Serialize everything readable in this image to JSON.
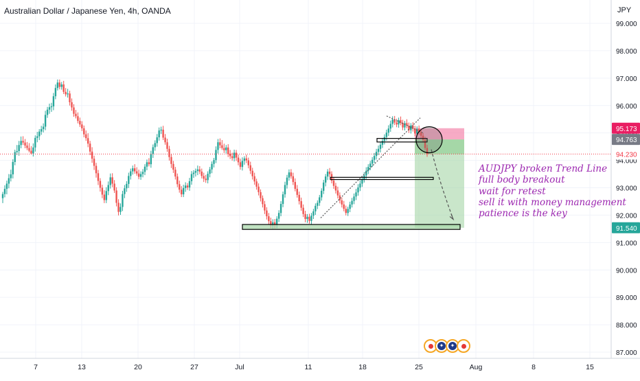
{
  "header": {
    "title": "Australian Dollar / Japanese Yen, 4h, OANDA",
    "currency": "JPY"
  },
  "annotation": {
    "lines": [
      "AUDJPY broken Trend Line",
      "full body breakout",
      "wait for retest",
      "sell it with money management",
      "patience is the key"
    ],
    "color": "#9c27b0"
  },
  "chart_data": {
    "type": "candlestick",
    "symbol": "AUDJPY",
    "timeframe": "4h",
    "y_axis": {
      "ticks": [
        "99.000",
        "98.000",
        "97.000",
        "96.000",
        "95.000",
        "94.000",
        "93.000",
        "92.000",
        "91.000",
        "90.000",
        "89.000",
        "88.000",
        "87.000"
      ],
      "tick_values": [
        99,
        98,
        97,
        96,
        95,
        94,
        93,
        92,
        91,
        90,
        89,
        88,
        87
      ],
      "range": [
        86.95,
        99.3
      ]
    },
    "x_axis": {
      "labels": [
        "7",
        "13",
        "20",
        "27",
        "Jul",
        "11",
        "18",
        "25",
        "Aug",
        "8",
        "15"
      ]
    },
    "price_labels": [
      {
        "text": "95.173",
        "value": 95.173,
        "bg": "#e91e63",
        "fg": "#ffffff"
      },
      {
        "text": "94.763",
        "value": 94.763,
        "bg": "#787b86",
        "fg": "#ffffff"
      },
      {
        "text": "94.230",
        "value": 94.23,
        "bg": "#ffffff",
        "fg": "#f23645"
      },
      {
        "text": "91.540",
        "value": 91.54,
        "bg": "#26a69a",
        "fg": "#ffffff"
      }
    ],
    "current_price": 94.23,
    "position": {
      "side": "short",
      "entry": 94.763,
      "stop": 95.173,
      "target": 91.54
    },
    "zones": [
      {
        "name": "support-box",
        "low": 91.48,
        "high": 91.66
      },
      {
        "name": "mid-level-box",
        "low": 93.3,
        "high": 93.38
      },
      {
        "name": "retest-box",
        "low": 94.67,
        "high": 94.8
      }
    ],
    "up_color": "#26a69a",
    "down_color": "#ef5350",
    "candles": [
      [
        92.62,
        92.85,
        92.44,
        92.77
      ],
      [
        92.77,
        93.09,
        92.65,
        92.96
      ],
      [
        92.96,
        93.26,
        92.76,
        93.15
      ],
      [
        93.15,
        93.5,
        92.98,
        93.35
      ],
      [
        93.35,
        93.66,
        93.23,
        93.49
      ],
      [
        93.49,
        94.04,
        93.34,
        93.94
      ],
      [
        93.94,
        94.39,
        93.82,
        94.3
      ],
      [
        94.3,
        94.56,
        94.19,
        94.34
      ],
      [
        94.34,
        94.71,
        94.17,
        94.56
      ],
      [
        94.56,
        94.87,
        94.44,
        94.71
      ],
      [
        94.71,
        94.88,
        94.56,
        94.65
      ],
      [
        94.65,
        94.78,
        94.44,
        94.54
      ],
      [
        94.54,
        94.67,
        94.37,
        94.45
      ],
      [
        94.45,
        94.63,
        94.29,
        94.35
      ],
      [
        94.35,
        94.52,
        94.21,
        94.25
      ],
      [
        94.25,
        94.62,
        94.14,
        94.47
      ],
      [
        94.47,
        94.91,
        94.32,
        94.82
      ],
      [
        94.82,
        95.04,
        94.66,
        94.88
      ],
      [
        94.88,
        95.14,
        94.74,
        95.05
      ],
      [
        95.05,
        95.26,
        94.93,
        95.14
      ],
      [
        95.14,
        95.35,
        95.02,
        95.23
      ],
      [
        95.23,
        95.81,
        95.1,
        95.66
      ],
      [
        95.66,
        95.95,
        95.55,
        95.85
      ],
      [
        95.85,
        96.07,
        95.7,
        95.94
      ],
      [
        95.94,
        96.1,
        95.77,
        95.97
      ],
      [
        95.97,
        96.46,
        95.83,
        96.34
      ],
      [
        96.34,
        96.77,
        96.23,
        96.64
      ],
      [
        96.64,
        96.95,
        96.55,
        96.84
      ],
      [
        96.84,
        96.95,
        96.59,
        96.68
      ],
      [
        96.68,
        96.86,
        96.58,
        96.77
      ],
      [
        96.77,
        96.9,
        96.42,
        96.5
      ],
      [
        96.5,
        96.64,
        96.33,
        96.41
      ],
      [
        96.41,
        96.61,
        96.29,
        96.44
      ],
      [
        96.44,
        96.54,
        96.0,
        96.12
      ],
      [
        96.12,
        96.26,
        95.81,
        95.93
      ],
      [
        95.93,
        96.05,
        95.59,
        95.7
      ],
      [
        95.7,
        95.84,
        95.53,
        95.61
      ],
      [
        95.61,
        95.75,
        95.35,
        95.44
      ],
      [
        95.44,
        95.56,
        95.22,
        95.31
      ],
      [
        95.31,
        95.43,
        95.07,
        95.17
      ],
      [
        95.17,
        95.27,
        94.84,
        94.95
      ],
      [
        94.95,
        95.09,
        94.71,
        94.81
      ],
      [
        94.81,
        94.99,
        94.48,
        94.61
      ],
      [
        94.61,
        94.71,
        94.19,
        94.32
      ],
      [
        94.32,
        94.48,
        93.91,
        94.06
      ],
      [
        94.06,
        94.17,
        93.65,
        93.8
      ],
      [
        93.8,
        93.91,
        93.37,
        93.53
      ],
      [
        93.53,
        93.65,
        93.1,
        93.25
      ],
      [
        93.25,
        93.35,
        92.86,
        93.0
      ],
      [
        93.0,
        93.11,
        92.62,
        92.75
      ],
      [
        92.75,
        92.91,
        92.44,
        92.55
      ],
      [
        92.55,
        93.02,
        92.44,
        92.88
      ],
      [
        92.88,
        93.23,
        92.73,
        93.1
      ],
      [
        93.1,
        93.52,
        92.97,
        93.38
      ],
      [
        93.38,
        93.53,
        93.02,
        93.15
      ],
      [
        93.15,
        93.28,
        92.81,
        92.9
      ],
      [
        92.9,
        93.02,
        92.32,
        92.45
      ],
      [
        92.45,
        92.58,
        91.99,
        92.12
      ],
      [
        92.12,
        92.43,
        92.01,
        92.3
      ],
      [
        92.3,
        92.89,
        92.15,
        92.77
      ],
      [
        92.77,
        93.1,
        92.62,
        92.98
      ],
      [
        92.98,
        93.24,
        92.85,
        93.14
      ],
      [
        93.14,
        93.55,
        92.99,
        93.43
      ],
      [
        93.43,
        93.7,
        93.3,
        93.6
      ],
      [
        93.6,
        93.81,
        93.48,
        93.71
      ],
      [
        93.71,
        93.86,
        93.51,
        93.6
      ],
      [
        93.6,
        93.75,
        93.44,
        93.52
      ],
      [
        93.52,
        93.66,
        93.31,
        93.4
      ],
      [
        93.4,
        93.6,
        93.29,
        93.5
      ],
      [
        93.5,
        93.68,
        93.38,
        93.58
      ],
      [
        93.58,
        93.86,
        93.46,
        93.77
      ],
      [
        93.77,
        94.03,
        93.64,
        93.93
      ],
      [
        93.93,
        94.08,
        93.78,
        93.86
      ],
      [
        93.86,
        94.35,
        93.73,
        94.23
      ],
      [
        94.23,
        94.58,
        94.09,
        94.48
      ],
      [
        94.48,
        94.73,
        94.35,
        94.63
      ],
      [
        94.63,
        94.96,
        94.5,
        94.84
      ],
      [
        94.84,
        95.2,
        94.72,
        95.09
      ],
      [
        95.09,
        95.23,
        94.96,
        95.12
      ],
      [
        95.12,
        95.26,
        94.74,
        94.83
      ],
      [
        94.83,
        94.96,
        94.57,
        94.66
      ],
      [
        94.66,
        94.79,
        94.31,
        94.42
      ],
      [
        94.42,
        94.53,
        93.99,
        94.12
      ],
      [
        94.12,
        94.24,
        93.72,
        93.87
      ],
      [
        93.87,
        93.98,
        93.54,
        93.66
      ],
      [
        93.66,
        93.76,
        93.3,
        93.41
      ],
      [
        93.41,
        93.52,
        93.02,
        93.13
      ],
      [
        93.13,
        93.26,
        92.82,
        92.93
      ],
      [
        92.93,
        93.06,
        92.66,
        92.76
      ],
      [
        92.76,
        93.11,
        92.66,
        92.99
      ],
      [
        92.99,
        93.2,
        92.85,
        93.08
      ],
      [
        93.08,
        93.17,
        92.92,
        93.01
      ],
      [
        93.01,
        93.36,
        92.89,
        93.24
      ],
      [
        93.24,
        93.61,
        93.11,
        93.5
      ],
      [
        93.5,
        93.64,
        93.36,
        93.55
      ],
      [
        93.55,
        93.7,
        93.41,
        93.61
      ],
      [
        93.61,
        93.81,
        93.46,
        93.67
      ],
      [
        93.67,
        93.79,
        93.5,
        93.59
      ],
      [
        93.59,
        93.7,
        93.34,
        93.43
      ],
      [
        93.43,
        93.55,
        93.21,
        93.33
      ],
      [
        93.33,
        93.47,
        93.18,
        93.28
      ],
      [
        93.28,
        93.6,
        93.16,
        93.51
      ],
      [
        93.51,
        93.76,
        93.38,
        93.67
      ],
      [
        93.67,
        93.96,
        93.53,
        93.87
      ],
      [
        93.87,
        94.09,
        93.74,
        94.01
      ],
      [
        94.01,
        94.51,
        93.9,
        94.38
      ],
      [
        94.38,
        94.78,
        94.25,
        94.66
      ],
      [
        94.66,
        94.8,
        94.44,
        94.55
      ],
      [
        94.55,
        94.74,
        94.38,
        94.45
      ],
      [
        94.45,
        94.61,
        94.27,
        94.37
      ],
      [
        94.37,
        94.56,
        94.25,
        94.47
      ],
      [
        94.47,
        94.59,
        94.12,
        94.24
      ],
      [
        94.24,
        94.38,
        94.05,
        94.15
      ],
      [
        94.15,
        94.28,
        93.99,
        94.08
      ],
      [
        94.08,
        94.39,
        93.96,
        94.28
      ],
      [
        94.28,
        94.38,
        93.98,
        94.1
      ],
      [
        94.1,
        94.21,
        93.82,
        93.93
      ],
      [
        93.93,
        94.06,
        93.66,
        93.76
      ],
      [
        93.76,
        94.11,
        93.63,
        93.98
      ],
      [
        93.98,
        94.15,
        93.84,
        94.07
      ],
      [
        94.07,
        94.21,
        93.9,
        94.0
      ],
      [
        94.0,
        94.1,
        93.71,
        93.82
      ],
      [
        93.82,
        93.95,
        93.5,
        93.62
      ],
      [
        93.62,
        93.73,
        93.3,
        93.42
      ],
      [
        93.42,
        93.55,
        93.11,
        93.23
      ],
      [
        93.23,
        93.33,
        92.93,
        93.04
      ],
      [
        93.04,
        93.16,
        92.72,
        92.84
      ],
      [
        92.84,
        92.94,
        92.5,
        92.62
      ],
      [
        92.62,
        92.72,
        92.28,
        92.4
      ],
      [
        92.4,
        92.52,
        92.04,
        92.17
      ],
      [
        92.17,
        92.29,
        91.84,
        91.96
      ],
      [
        91.96,
        92.08,
        91.67,
        91.78
      ],
      [
        91.78,
        91.91,
        91.52,
        91.62
      ],
      [
        91.62,
        91.85,
        91.5,
        91.74
      ],
      [
        91.74,
        91.86,
        91.51,
        91.63
      ],
      [
        91.63,
        91.96,
        91.52,
        91.87
      ],
      [
        91.87,
        92.18,
        91.75,
        92.08
      ],
      [
        92.08,
        92.51,
        91.96,
        92.41
      ],
      [
        92.41,
        92.86,
        92.29,
        92.76
      ],
      [
        92.76,
        93.22,
        92.64,
        93.1
      ],
      [
        93.1,
        93.47,
        92.97,
        93.37
      ],
      [
        93.37,
        93.67,
        93.26,
        93.56
      ],
      [
        93.56,
        93.68,
        93.33,
        93.42
      ],
      [
        93.42,
        93.55,
        93.1,
        93.21
      ],
      [
        93.21,
        93.34,
        92.87,
        92.96
      ],
      [
        92.96,
        93.1,
        92.64,
        92.74
      ],
      [
        92.74,
        92.86,
        92.39,
        92.51
      ],
      [
        92.51,
        92.64,
        92.16,
        92.27
      ],
      [
        92.27,
        92.39,
        91.93,
        92.04
      ],
      [
        92.04,
        92.16,
        91.74,
        91.86
      ],
      [
        91.86,
        92.04,
        91.72,
        91.94
      ],
      [
        91.94,
        92.05,
        91.69,
        91.79
      ],
      [
        91.79,
        92.08,
        91.67,
        91.98
      ],
      [
        91.98,
        92.23,
        91.86,
        92.14
      ],
      [
        92.14,
        92.43,
        92.01,
        92.34
      ],
      [
        92.34,
        92.54,
        92.22,
        92.45
      ],
      [
        92.45,
        92.74,
        92.34,
        92.65
      ],
      [
        92.65,
        92.98,
        92.53,
        92.89
      ],
      [
        92.89,
        93.29,
        92.77,
        93.19
      ],
      [
        93.19,
        93.5,
        93.05,
        93.41
      ],
      [
        93.41,
        93.68,
        93.28,
        93.59
      ],
      [
        93.59,
        93.72,
        93.39,
        93.5
      ],
      [
        93.5,
        93.6,
        93.16,
        93.26
      ],
      [
        93.26,
        93.39,
        92.96,
        93.07
      ],
      [
        93.07,
        93.18,
        92.79,
        92.9
      ],
      [
        92.9,
        93.04,
        92.61,
        92.72
      ],
      [
        92.72,
        92.83,
        92.43,
        92.54
      ],
      [
        92.54,
        92.65,
        92.28,
        92.39
      ],
      [
        92.39,
        92.52,
        92.14,
        92.23
      ],
      [
        92.23,
        92.35,
        91.99,
        92.08
      ],
      [
        92.08,
        92.31,
        91.97,
        92.23
      ],
      [
        92.23,
        92.49,
        92.11,
        92.39
      ],
      [
        92.39,
        92.63,
        92.28,
        92.52
      ],
      [
        92.52,
        92.79,
        92.4,
        92.68
      ],
      [
        92.68,
        92.96,
        92.55,
        92.83
      ],
      [
        92.83,
        93.13,
        92.71,
        93.01
      ],
      [
        93.01,
        93.27,
        92.88,
        93.15
      ],
      [
        93.15,
        93.42,
        93.03,
        93.31
      ],
      [
        93.31,
        93.57,
        93.19,
        93.45
      ],
      [
        93.45,
        93.75,
        93.32,
        93.62
      ],
      [
        93.62,
        93.86,
        93.5,
        93.76
      ],
      [
        93.76,
        93.98,
        93.64,
        93.88
      ],
      [
        93.88,
        94.12,
        93.76,
        94.02
      ],
      [
        94.02,
        94.27,
        93.9,
        94.16
      ],
      [
        94.16,
        94.42,
        94.03,
        94.31
      ],
      [
        94.31,
        94.54,
        94.19,
        94.42
      ],
      [
        94.42,
        94.68,
        94.29,
        94.57
      ],
      [
        94.57,
        94.82,
        94.45,
        94.71
      ],
      [
        94.71,
        94.95,
        94.58,
        94.85
      ],
      [
        94.85,
        95.12,
        94.72,
        95.01
      ],
      [
        95.01,
        95.28,
        94.89,
        95.16
      ],
      [
        95.16,
        95.45,
        95.04,
        95.33
      ],
      [
        95.33,
        95.61,
        95.2,
        95.49
      ],
      [
        95.49,
        95.62,
        95.29,
        95.38
      ],
      [
        95.38,
        95.52,
        95.21,
        95.31
      ],
      [
        95.31,
        95.56,
        95.19,
        95.47
      ],
      [
        95.47,
        95.6,
        95.28,
        95.37
      ],
      [
        95.37,
        95.48,
        95.1,
        95.2
      ],
      [
        95.2,
        95.44,
        95.09,
        95.36
      ],
      [
        95.36,
        95.5,
        95.17,
        95.27
      ],
      [
        95.27,
        95.38,
        95.0,
        95.1
      ],
      [
        95.1,
        95.36,
        94.98,
        95.27
      ],
      [
        95.27,
        95.39,
        95.05,
        95.15
      ],
      [
        95.15,
        95.26,
        94.88,
        94.98
      ],
      [
        94.98,
        95.24,
        94.86,
        95.15
      ],
      [
        95.15,
        95.27,
        94.93,
        95.03
      ],
      [
        95.03,
        95.13,
        94.8,
        94.9
      ],
      [
        94.9,
        95.0,
        94.65,
        94.75
      ],
      [
        94.75,
        94.86,
        94.37,
        94.45
      ],
      [
        94.45,
        94.57,
        94.13,
        94.23
      ]
    ]
  }
}
